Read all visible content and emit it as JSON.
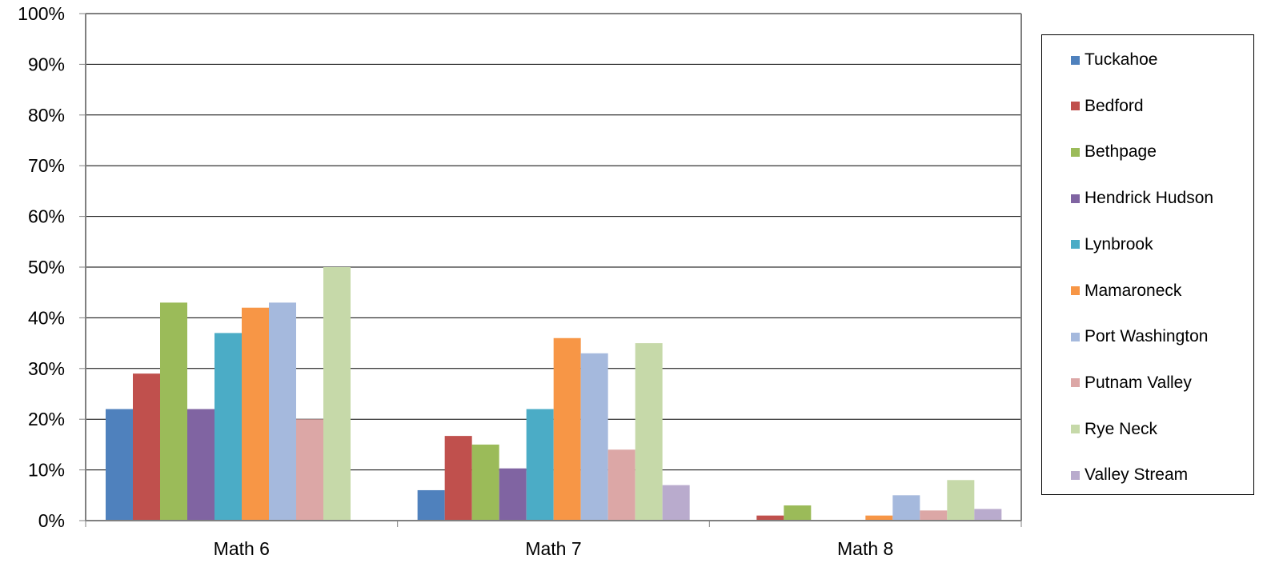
{
  "chart_data": {
    "type": "bar",
    "title": "",
    "xlabel": "",
    "ylabel": "",
    "ylim": [
      0,
      100
    ],
    "y_ticks": [
      "0%",
      "10%",
      "20%",
      "30%",
      "40%",
      "50%",
      "60%",
      "70%",
      "80%",
      "90%",
      "100%"
    ],
    "grid": true,
    "legend_position": "right",
    "categories": [
      "Math 6",
      "Math 7",
      "Math 8"
    ],
    "series": [
      {
        "name": "Tuckahoe",
        "color": "#4F81BD",
        "values": [
          22,
          6,
          0
        ]
      },
      {
        "name": "Bedford",
        "color": "#C0504D",
        "values": [
          29,
          16.7,
          1
        ]
      },
      {
        "name": "Bethpage",
        "color": "#9BBB59",
        "values": [
          43,
          15,
          3
        ]
      },
      {
        "name": "Hendrick Hudson",
        "color": "#8064A2",
        "values": [
          22,
          10.3,
          0
        ]
      },
      {
        "name": "Lynbrook",
        "color": "#4BACC6",
        "values": [
          37,
          22,
          0
        ]
      },
      {
        "name": "Mamaroneck",
        "color": "#F79646",
        "values": [
          42,
          36,
          1
        ]
      },
      {
        "name": "Port Washington",
        "color": "#A5B9DD",
        "values": [
          43,
          33,
          5
        ]
      },
      {
        "name": "Putnam Valley",
        "color": "#DCA7A6",
        "values": [
          20,
          14,
          2
        ]
      },
      {
        "name": "Rye Neck",
        "color": "#C6D9A9",
        "values": [
          50,
          35,
          8
        ]
      },
      {
        "name": "Valley Stream",
        "color": "#B9ABCD",
        "values": [
          null,
          7,
          2.3
        ]
      }
    ]
  }
}
